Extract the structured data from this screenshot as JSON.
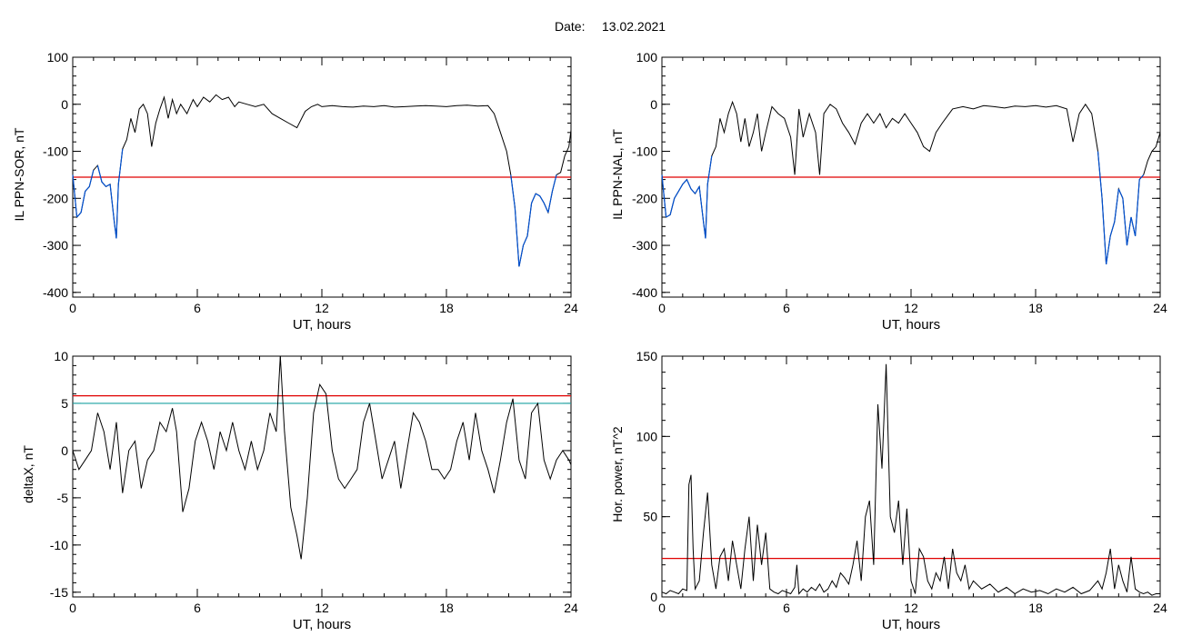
{
  "header": {
    "date_label": "Date:",
    "date_value": "13.02.2021"
  },
  "colors": {
    "trace": "#000000",
    "threshold": "#e00000",
    "threshold_alt": "#1aa0a0",
    "highlight": "#0050d0",
    "marker_blue": "#2060d0",
    "marker_red": "#d02020",
    "marker_green": "#20a020"
  },
  "chart_data": [
    {
      "id": "il-sor",
      "type": "line",
      "xlabel": "UT, hours",
      "ylabel": "IL PPN-SOR, nT",
      "xlim": [
        0,
        24
      ],
      "ylim": [
        -410,
        100
      ],
      "xticks": [
        0,
        6,
        12,
        18,
        24
      ],
      "yticks": [
        100,
        0,
        -100,
        -200,
        -300,
        -400
      ],
      "x": [
        0,
        0.2,
        0.4,
        0.6,
        0.8,
        1.0,
        1.2,
        1.4,
        1.6,
        1.8,
        2.0,
        2.1,
        2.2,
        2.4,
        2.6,
        2.8,
        3.0,
        3.2,
        3.4,
        3.6,
        3.8,
        4.0,
        4.2,
        4.4,
        4.6,
        4.8,
        5.0,
        5.2,
        5.5,
        5.8,
        6.0,
        6.3,
        6.6,
        6.9,
        7.2,
        7.5,
        7.8,
        8.0,
        8.4,
        8.8,
        9.2,
        9.6,
        10.0,
        10.4,
        10.8,
        11.2,
        11.5,
        11.8,
        12.0,
        12.5,
        13.0,
        13.5,
        14.0,
        14.5,
        15.0,
        15.5,
        16.0,
        16.5,
        17.0,
        17.5,
        18.0,
        18.5,
        19.0,
        19.5,
        20.0,
        20.3,
        20.6,
        20.9,
        21.1,
        21.3,
        21.5,
        21.7,
        21.9,
        22.1,
        22.3,
        22.5,
        22.7,
        22.9,
        23.1,
        23.3,
        23.5,
        23.7,
        23.9,
        24.0
      ],
      "values": [
        -150,
        -240,
        -230,
        -185,
        -175,
        -140,
        -130,
        -165,
        -175,
        -170,
        -250,
        -285,
        -170,
        -95,
        -75,
        -30,
        -60,
        -10,
        0,
        -20,
        -90,
        -40,
        -10,
        15,
        -30,
        10,
        -20,
        0,
        -20,
        10,
        -5,
        15,
        5,
        20,
        10,
        15,
        -5,
        5,
        0,
        -5,
        0,
        -20,
        -30,
        -40,
        -50,
        -15,
        -5,
        0,
        -5,
        -3,
        -5,
        -6,
        -4,
        -5,
        -3,
        -6,
        -5,
        -4,
        -3,
        -4,
        -5,
        -3,
        -2,
        -4,
        -3,
        -20,
        -60,
        -100,
        -150,
        -220,
        -345,
        -300,
        -280,
        -210,
        -190,
        -195,
        -210,
        -230,
        -185,
        -150,
        -145,
        -110,
        -90,
        -55
      ],
      "thresholds": [
        {
          "value": -155,
          "color": "#e00000"
        }
      ],
      "highlight_below": -155
    },
    {
      "id": "il-nal",
      "type": "line",
      "xlabel": "UT, hours",
      "ylabel": "IL PPN-NAL, nT",
      "xlim": [
        0,
        24
      ],
      "ylim": [
        -410,
        100
      ],
      "xticks": [
        0,
        6,
        12,
        18,
        24
      ],
      "yticks": [
        100,
        0,
        -100,
        -200,
        -300,
        -400
      ],
      "x": [
        0,
        0.2,
        0.4,
        0.6,
        0.8,
        1.0,
        1.2,
        1.4,
        1.6,
        1.8,
        2.0,
        2.1,
        2.2,
        2.4,
        2.6,
        2.8,
        3.0,
        3.2,
        3.4,
        3.6,
        3.8,
        4.0,
        4.2,
        4.4,
        4.6,
        4.8,
        5.0,
        5.3,
        5.6,
        5.9,
        6.2,
        6.4,
        6.6,
        6.8,
        7.1,
        7.4,
        7.6,
        7.8,
        8.1,
        8.4,
        8.7,
        9.0,
        9.3,
        9.6,
        9.9,
        10.2,
        10.5,
        10.8,
        11.1,
        11.4,
        11.7,
        12.0,
        12.3,
        12.6,
        12.9,
        13.2,
        13.5,
        14.0,
        14.5,
        15.0,
        15.5,
        16.0,
        16.5,
        17.0,
        17.5,
        18.0,
        18.5,
        19.0,
        19.5,
        19.8,
        20.1,
        20.4,
        20.7,
        21.0,
        21.2,
        21.4,
        21.6,
        21.8,
        22.0,
        22.2,
        22.4,
        22.6,
        22.8,
        23.0,
        23.2,
        23.4,
        23.6,
        23.8,
        24.0
      ],
      "values": [
        -150,
        -240,
        -235,
        -200,
        -185,
        -170,
        -160,
        -180,
        -190,
        -175,
        -250,
        -285,
        -170,
        -110,
        -90,
        -30,
        -60,
        -20,
        5,
        -20,
        -80,
        -30,
        -90,
        -60,
        -20,
        -100,
        -60,
        -5,
        -20,
        -30,
        -70,
        -150,
        -10,
        -70,
        -20,
        -60,
        -150,
        -20,
        0,
        -10,
        -40,
        -60,
        -85,
        -40,
        -20,
        -40,
        -20,
        -50,
        -30,
        -40,
        -20,
        -40,
        -60,
        -90,
        -100,
        -60,
        -40,
        -10,
        -5,
        -10,
        -3,
        -5,
        -8,
        -4,
        -5,
        -3,
        -6,
        -3,
        -10,
        -80,
        -20,
        0,
        -20,
        -100,
        -200,
        -340,
        -280,
        -250,
        -180,
        -200,
        -300,
        -240,
        -280,
        -160,
        -150,
        -120,
        -100,
        -90,
        -60
      ],
      "thresholds": [
        {
          "value": -155,
          "color": "#e00000"
        }
      ],
      "highlight_below": -155
    },
    {
      "id": "deltax",
      "type": "line",
      "xlabel": "UT, hours",
      "ylabel": "deltaX, nT",
      "xlim": [
        0,
        24
      ],
      "ylim": [
        -15.5,
        10
      ],
      "xticks": [
        0,
        6,
        12,
        18,
        24
      ],
      "yticks": [
        10,
        5,
        0,
        -5,
        -10,
        -15
      ],
      "x": [
        0,
        0.3,
        0.6,
        0.9,
        1.2,
        1.5,
        1.8,
        2.1,
        2.4,
        2.7,
        3.0,
        3.3,
        3.6,
        3.9,
        4.2,
        4.5,
        4.8,
        5.0,
        5.3,
        5.6,
        5.9,
        6.2,
        6.5,
        6.8,
        7.1,
        7.4,
        7.7,
        8.0,
        8.3,
        8.6,
        8.9,
        9.2,
        9.5,
        9.8,
        10.0,
        10.2,
        10.5,
        10.8,
        11.0,
        11.3,
        11.6,
        11.9,
        12.2,
        12.5,
        12.8,
        13.1,
        13.4,
        13.7,
        14.0,
        14.3,
        14.6,
        14.9,
        15.2,
        15.5,
        15.8,
        16.1,
        16.4,
        16.7,
        17.0,
        17.3,
        17.6,
        17.9,
        18.2,
        18.5,
        18.8,
        19.1,
        19.4,
        19.7,
        20.0,
        20.3,
        20.6,
        20.9,
        21.2,
        21.5,
        21.8,
        22.1,
        22.4,
        22.7,
        23.0,
        23.3,
        23.6,
        23.9,
        24.0
      ],
      "values": [
        0,
        -2,
        -1,
        0,
        4,
        2,
        -2,
        3,
        -4.5,
        0,
        1,
        -4,
        -1,
        0,
        3,
        2,
        4.5,
        2,
        -6.5,
        -4,
        1,
        3,
        1,
        -2,
        2,
        0,
        3,
        0,
        -2,
        1,
        -2,
        0,
        4,
        2,
        10,
        2,
        -6,
        -9,
        -11.5,
        -5,
        4,
        7,
        6,
        0,
        -3,
        -4,
        -3,
        -2,
        3,
        5,
        1,
        -3,
        -1,
        1,
        -4,
        0,
        4,
        3,
        1,
        -2,
        -2,
        -3,
        -2,
        1,
        3,
        -1,
        4,
        0,
        -2,
        -4.5,
        -1,
        3,
        5.5,
        -1,
        -3,
        4,
        5,
        -1,
        -3,
        -1,
        0,
        -1,
        -1.5
      ],
      "thresholds": [
        {
          "value": 5.8,
          "color": "#e00000"
        },
        {
          "value": 5.0,
          "color": "#1aa0a0"
        }
      ]
    },
    {
      "id": "hor-power",
      "type": "line",
      "xlabel": "UT, hours",
      "ylabel": "Hor. power, nT^2",
      "xlim": [
        0,
        24
      ],
      "ylim": [
        0,
        150
      ],
      "xticks": [
        0,
        6,
        12,
        18,
        24
      ],
      "yticks": [
        150,
        100,
        50,
        0
      ],
      "x": [
        0,
        0.2,
        0.4,
        0.6,
        0.8,
        1.0,
        1.2,
        1.3,
        1.4,
        1.5,
        1.6,
        1.8,
        2.0,
        2.2,
        2.4,
        2.6,
        2.8,
        3.0,
        3.2,
        3.4,
        3.6,
        3.8,
        4.0,
        4.2,
        4.4,
        4.6,
        4.8,
        5.0,
        5.2,
        5.4,
        5.6,
        5.8,
        6.0,
        6.2,
        6.4,
        6.5,
        6.6,
        6.8,
        7.0,
        7.2,
        7.4,
        7.6,
        7.8,
        8.0,
        8.2,
        8.4,
        8.6,
        8.8,
        9.0,
        9.2,
        9.4,
        9.6,
        9.8,
        10.0,
        10.2,
        10.4,
        10.6,
        10.8,
        11.0,
        11.2,
        11.4,
        11.6,
        11.8,
        12.0,
        12.2,
        12.4,
        12.6,
        12.8,
        13.0,
        13.2,
        13.4,
        13.6,
        13.8,
        14.0,
        14.2,
        14.4,
        14.6,
        14.8,
        15.0,
        15.4,
        15.8,
        16.2,
        16.6,
        17.0,
        17.4,
        17.8,
        18.2,
        18.6,
        19.0,
        19.4,
        19.8,
        20.2,
        20.6,
        21.0,
        21.2,
        21.4,
        21.6,
        21.8,
        22.0,
        22.2,
        22.4,
        22.6,
        22.8,
        23.0,
        23.2,
        23.4,
        23.6,
        23.8,
        24.0
      ],
      "values": [
        3,
        2,
        4,
        3,
        2,
        5,
        4,
        70,
        76,
        30,
        5,
        10,
        40,
        65,
        20,
        5,
        25,
        30,
        10,
        35,
        20,
        5,
        30,
        50,
        10,
        45,
        20,
        40,
        5,
        3,
        2,
        4,
        3,
        2,
        6,
        20,
        2,
        5,
        3,
        6,
        4,
        8,
        3,
        5,
        10,
        6,
        15,
        12,
        8,
        20,
        35,
        10,
        50,
        60,
        20,
        120,
        80,
        145,
        50,
        40,
        60,
        20,
        55,
        10,
        2,
        30,
        25,
        10,
        5,
        15,
        10,
        25,
        5,
        30,
        15,
        10,
        20,
        5,
        10,
        5,
        8,
        3,
        6,
        2,
        5,
        3,
        4,
        2,
        5,
        3,
        6,
        2,
        4,
        10,
        5,
        15,
        30,
        5,
        20,
        10,
        3,
        25,
        5,
        3,
        2,
        3,
        1,
        2,
        2
      ],
      "thresholds": [
        {
          "value": 24,
          "color": "#e00000"
        }
      ]
    }
  ]
}
